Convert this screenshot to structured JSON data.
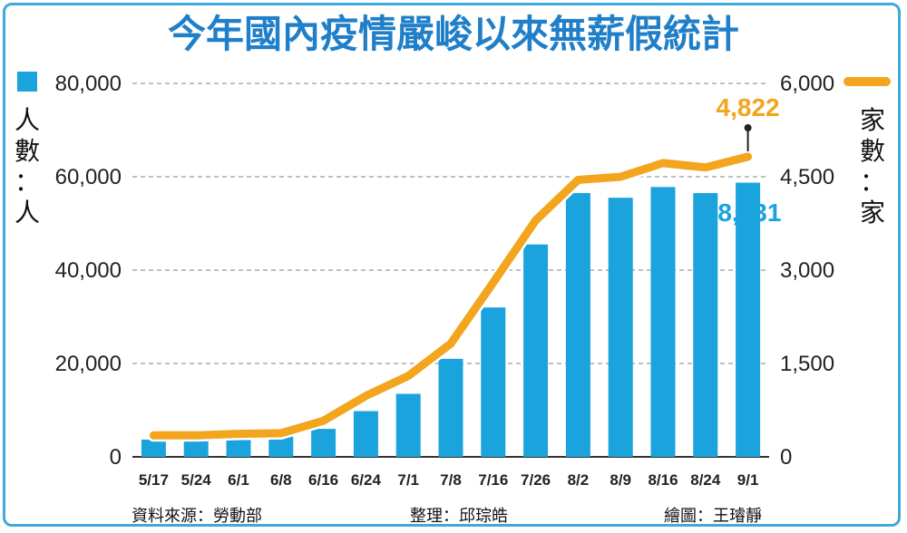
{
  "chart_data": {
    "type": "bar",
    "title": "今年國內疫情嚴峻以來無薪假統計",
    "categories": [
      "5/17",
      "5/24",
      "6/1",
      "6/8",
      "6/16",
      "6/24",
      "7/1",
      "7/8",
      "7/16",
      "7/26",
      "8/2",
      "8/9",
      "8/16",
      "8/24",
      "9/1"
    ],
    "series": [
      {
        "name": "人數",
        "type": "bar",
        "axis": "left",
        "color": "#1aa3dd",
        "values": [
          3700,
          3700,
          4100,
          4300,
          6000,
          9800,
          13500,
          21000,
          32000,
          45500,
          56500,
          55500,
          57800,
          56500,
          58731
        ]
      },
      {
        "name": "家數",
        "type": "line",
        "axis": "right",
        "color": "#f2a51d",
        "values": [
          345,
          345,
          370,
          380,
          580,
          980,
          1300,
          1820,
          2800,
          3800,
          4450,
          4500,
          4720,
          4650,
          4822
        ]
      }
    ],
    "y_left": {
      "label": "人數：人",
      "min": 0,
      "max": 80000,
      "ticks": [
        "0",
        "20,000",
        "40,000",
        "60,000",
        "80,000"
      ]
    },
    "y_right": {
      "label": "家數：家",
      "min": 0,
      "max": 6000,
      "ticks": [
        "0",
        "1,500",
        "3,000",
        "4,500",
        "6,000"
      ]
    },
    "annotations": {
      "last_bar": "58,731",
      "last_line": "4,822"
    },
    "grid": "dashed-horizontal",
    "legend": "axis-side markers"
  },
  "legend": {
    "bar_color": "#1aa3dd",
    "line_color": "#f2a51d"
  },
  "credits": {
    "source": "資料來源：勞動部",
    "editor": "整理：邱琮皓",
    "artist": "繪圖：王璿靜"
  }
}
